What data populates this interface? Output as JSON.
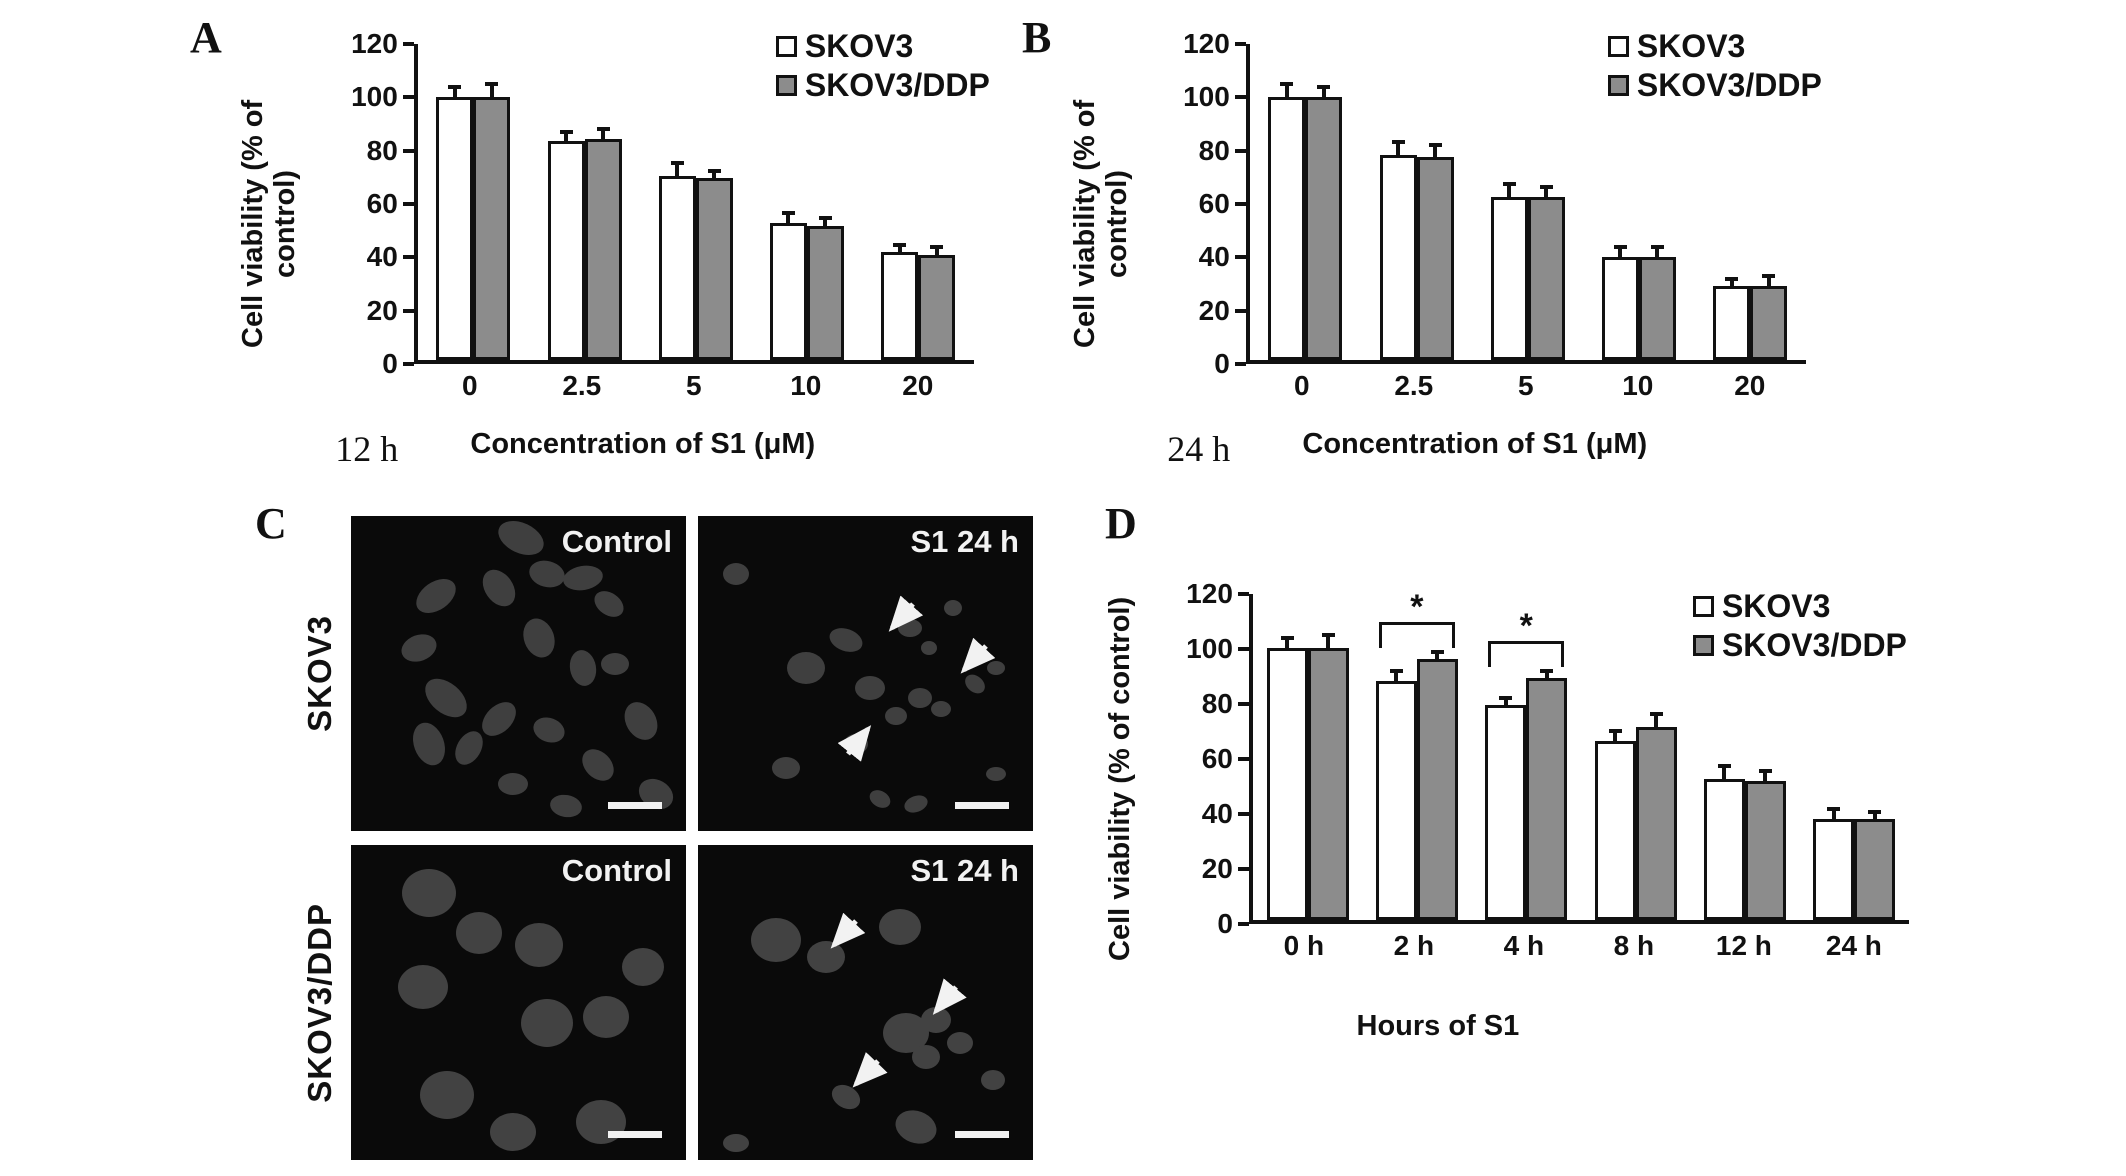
{
  "colors": {
    "bar_white": "#ffffff",
    "bar_gray": "#8c8c8c",
    "axis": "#111111",
    "micro_background": "#0a0a0a",
    "nucleus_gray": "#3f3f3f",
    "overlay_white": "#f2f2f2"
  },
  "panel_c": {
    "label": "C",
    "rows": [
      {
        "row_label": "SKOV3",
        "images": [
          {
            "label": "Control"
          },
          {
            "label": "S1 24 h"
          }
        ]
      },
      {
        "row_label": "SKOV3/DDP",
        "images": [
          {
            "label": "Control"
          },
          {
            "label": "S1 24 h"
          }
        ]
      }
    ]
  },
  "chart_data": [
    {
      "panel_label": "A",
      "type": "bar",
      "title": "",
      "time_label": "12  h",
      "categories": [
        "0",
        "2.5",
        "5",
        "10",
        "20"
      ],
      "xlabel": "Concentration of S1 (μM)",
      "ylabel": "Cell viability (% of control)",
      "ylim": [
        0,
        120
      ],
      "yticks": [
        0,
        20,
        40,
        60,
        80,
        100,
        120
      ],
      "legend_position": "top-right",
      "grid": false,
      "series": [
        {
          "name": "SKOV3",
          "color": "#ffffff",
          "values": [
            100,
            83,
            70,
            52,
            41
          ],
          "errors": [
            3,
            3,
            4,
            3,
            2
          ]
        },
        {
          "name": "SKOV3/DDP",
          "color": "#8c8c8c",
          "values": [
            100,
            84,
            69,
            51,
            40
          ],
          "errors": [
            4,
            3,
            2,
            2,
            2
          ]
        }
      ]
    },
    {
      "panel_label": "B",
      "type": "bar",
      "title": "",
      "time_label": "24  h",
      "categories": [
        "0",
        "2.5",
        "5",
        "10",
        "20"
      ],
      "xlabel": "Concentration of S1 (μM)",
      "ylabel": "Cell viability (% of control)",
      "ylim": [
        0,
        120
      ],
      "yticks": [
        0,
        20,
        40,
        60,
        80,
        100,
        120
      ],
      "legend_position": "top-right",
      "grid": false,
      "series": [
        {
          "name": "SKOV3",
          "color": "#ffffff",
          "values": [
            100,
            78,
            62,
            39,
            28
          ],
          "errors": [
            4,
            4,
            4,
            3,
            2
          ]
        },
        {
          "name": "SKOV3/DDP",
          "color": "#8c8c8c",
          "values": [
            100,
            77,
            62,
            39,
            28
          ],
          "errors": [
            3,
            4,
            3,
            3,
            3
          ]
        }
      ]
    },
    {
      "panel_label": "D",
      "type": "bar",
      "title": "",
      "time_label": "",
      "categories": [
        "0 h",
        "2 h",
        "4 h",
        "8 h",
        "12 h",
        "24 h"
      ],
      "xlabel": "Hours of S1",
      "ylabel": "Cell viability (% of control)",
      "ylim": [
        0,
        120
      ],
      "yticks": [
        0,
        20,
        40,
        60,
        80,
        100,
        120
      ],
      "legend_position": "top-right",
      "grid": false,
      "series": [
        {
          "name": "SKOV3",
          "color": "#ffffff",
          "values": [
            100,
            88,
            79,
            66,
            52,
            37
          ],
          "errors": [
            3,
            3,
            2,
            3,
            4,
            3
          ]
        },
        {
          "name": "SKOV3/DDP",
          "color": "#8c8c8c",
          "values": [
            100,
            96,
            89,
            71,
            51,
            37
          ],
          "errors": [
            4,
            2,
            2,
            4,
            3,
            2
          ]
        }
      ],
      "significance": [
        {
          "index": 1,
          "label": "*"
        },
        {
          "index": 2,
          "label": "*"
        }
      ]
    }
  ]
}
